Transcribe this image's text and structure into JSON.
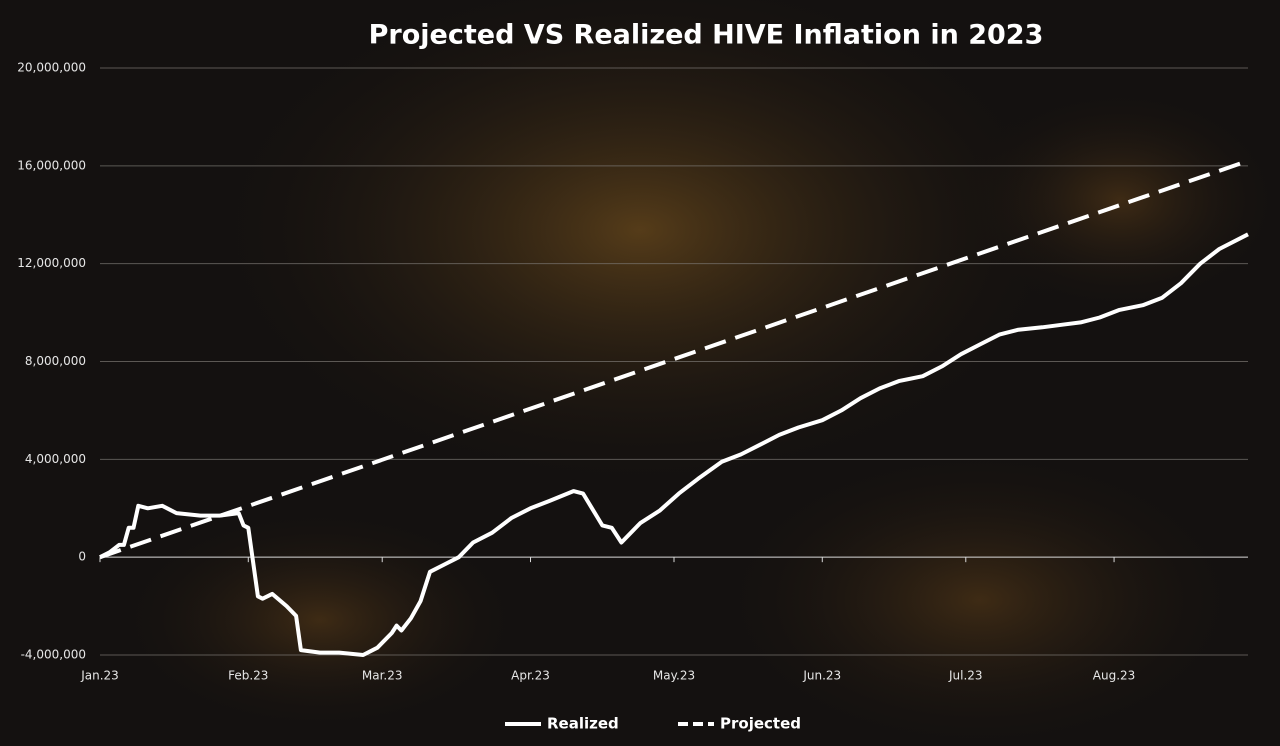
{
  "chart_data": {
    "type": "line",
    "title": "Projected VS Realized HIVE Inflation in 2023",
    "xlim": [
      0,
      240
    ],
    "xticks": [
      {
        "value": 0,
        "label": "Jan.23"
      },
      {
        "value": 31,
        "label": "Feb.23"
      },
      {
        "value": 59,
        "label": "Mar.23"
      },
      {
        "value": 90,
        "label": "Apr.23"
      },
      {
        "value": 120,
        "label": "May.23"
      },
      {
        "value": 151,
        "label": "Jun.23"
      },
      {
        "value": 181,
        "label": "Jul.23"
      },
      {
        "value": 212,
        "label": "Aug.23"
      }
    ],
    "ylim": [
      -4000000,
      20000000
    ],
    "yticks": [
      {
        "value": -4000000,
        "label": "-4,000,000"
      },
      0,
      {
        "value": 4000000,
        "label": "4,000,000"
      },
      {
        "value": 8000000,
        "label": "8,000,000"
      },
      {
        "value": 12000000,
        "label": "12,000,000"
      },
      {
        "value": 16000000,
        "label": "16,000,000"
      },
      {
        "value": 20000000,
        "label": "20,000,000"
      }
    ],
    "grid": true,
    "legend": "bottom",
    "series": [
      {
        "name": "Realized",
        "color": "#ffffff",
        "dash": false,
        "x": [
          0,
          2,
          4,
          5,
          6,
          7,
          8,
          10,
          13,
          16,
          21,
          25,
          29,
          30,
          31,
          33,
          34,
          36,
          39,
          41,
          42,
          46,
          50,
          55,
          58,
          61,
          62,
          63,
          65,
          67,
          69,
          72,
          75,
          78,
          82,
          86,
          90,
          94,
          99,
          101,
          105,
          107,
          109,
          113,
          117,
          121,
          125,
          130,
          134,
          138,
          142,
          146,
          151,
          155,
          159,
          163,
          167,
          172,
          176,
          180,
          184,
          188,
          192,
          197,
          201,
          205,
          209,
          213,
          218,
          222,
          226,
          230,
          234,
          240
        ],
        "values": [
          0,
          200000,
          500000,
          500000,
          1200000,
          1200000,
          2100000,
          2000000,
          2100000,
          1800000,
          1700000,
          1700000,
          1800000,
          1300000,
          1200000,
          -1600000,
          -1700000,
          -1500000,
          -2000000,
          -2400000,
          -3800000,
          -3900000,
          -3900000,
          -4000000,
          -3700000,
          -3100000,
          -2800000,
          -3000000,
          -2500000,
          -1800000,
          -600000,
          -300000,
          0,
          600000,
          1000000,
          1600000,
          2000000,
          2300000,
          2700000,
          2600000,
          1300000,
          1200000,
          600000,
          1400000,
          1900000,
          2600000,
          3200000,
          3900000,
          4200000,
          4600000,
          5000000,
          5300000,
          5600000,
          6000000,
          6500000,
          6900000,
          7200000,
          7400000,
          7800000,
          8300000,
          8700000,
          9100000,
          9300000,
          9400000,
          9500000,
          9600000,
          9800000,
          10100000,
          10300000,
          10600000,
          11200000,
          12000000,
          12600000,
          13200000
        ]
      },
      {
        "name": "Projected",
        "color": "#ffffff",
        "dash": true,
        "x": [
          0,
          240
        ],
        "values": [
          0,
          16200000
        ]
      }
    ]
  }
}
